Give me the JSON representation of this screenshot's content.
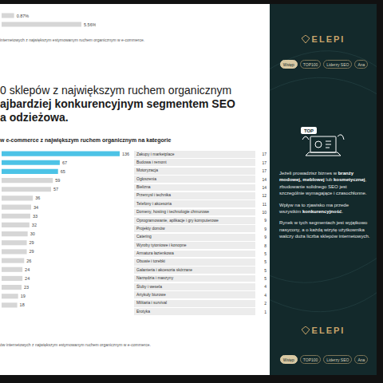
{
  "chart_data": [
    {
      "type": "bar",
      "orientation": "horizontal",
      "categories": [
        null,
        null
      ],
      "values": [
        0.87,
        5.56
      ],
      "value_labels": [
        "0.87%",
        "5.56%"
      ],
      "colors": [
        "#d6d6d6",
        "#d6d6d6"
      ],
      "xlim": [
        0,
        5.56
      ],
      "data_labels": true,
      "tick_labels": false,
      "grid": false
    },
    {
      "type": "bar",
      "orientation": "horizontal",
      "categories": [
        null,
        null,
        null,
        null,
        null,
        null,
        null,
        null,
        null,
        null,
        null,
        null,
        null,
        null,
        null,
        null,
        null,
        null
      ],
      "values": [
        136,
        67,
        65,
        59,
        57,
        36,
        34,
        33,
        32,
        30,
        29,
        29,
        26,
        24,
        24,
        23,
        19,
        18
      ],
      "colors": [
        "#4cc3e6",
        "#4cc3e6",
        "#4cc3e6",
        "#d6d6d6",
        "#d6d6d6",
        "#d6d6d6",
        "#d6d6d6",
        "#d6d6d6",
        "#d6d6d6",
        "#d6d6d6",
        "#d6d6d6",
        "#d6d6d6",
        "#d6d6d6",
        "#d6d6d6",
        "#d6d6d6",
        "#d6d6d6",
        "#d6d6d6",
        "#d6d6d6"
      ],
      "xlim": [
        0,
        136
      ],
      "data_labels": true,
      "tick_labels": false,
      "grid": false
    }
  ],
  "page": {
    "top_caption": "internetowych z największym estymowanym ruchem organicznym w e-commerce.",
    "heading": [
      [
        {
          "text": "0 sklepów z największym ruchem organicznym"
        }
      ],
      [
        {
          "text": "ajbardziej konkurencyjnym segmentem SEO",
          "strong": true
        }
      ],
      [
        {
          "text": "a odzieżowa.",
          "strong": true
        }
      ]
    ],
    "chart_title": "w e-commerce z największym ruchem organicznym na kategorie",
    "category_list": {
      "categories": [
        "Zakupy i marketplace",
        "Budowa i remont",
        "Motoryzacja",
        "Ogłoszenia",
        "Bielizna",
        "Przemysł i technika",
        "Telefony i akcesoria",
        "Domeny, hosting i technologie chmurowe",
        "Oprogramowanie, aplikacje i gry komputerowe",
        "Projekty domów",
        "Catering",
        "Wyroby tytoniowe i konopne",
        "Armatura łazienkowa",
        "Obuwie i torebki",
        "Galanteria i akcesoria skórzane",
        "Narzędzia i maszyny",
        "Śluby i wesela",
        "Artykuły biurowe",
        "Militaria i survival",
        "Erotyka"
      ],
      "values": [
        17,
        17,
        17,
        14,
        14,
        12,
        11,
        10,
        9,
        9,
        9,
        8,
        5,
        5,
        5,
        5,
        4,
        4,
        2,
        1
      ]
    },
    "bottom_caption": "ów internetowych z największym estymowanym ruchem organicznym w e-commerce.",
    "panel": {
      "logo": "ELEPI",
      "nav": [
        "Wstęp",
        "TOP100",
        "Liderzy SEO",
        "Ana"
      ],
      "active_nav": "Wstęp",
      "badge": "TOP",
      "paragraphs": [
        [
          {
            "text": "Jeżeli prowadzisz biznes w "
          },
          {
            "text": "branży modowej, meblowej",
            "strong": true
          },
          {
            "text": " lub "
          },
          {
            "text": "kosmetycznej",
            "strong": true
          },
          {
            "text": ", zbudowanie solidnego SEO jest szczególnie wymagające i czasochłonne."
          }
        ],
        [
          {
            "text": "Wpływ na to zjawisko ma przede wszystkim "
          },
          {
            "text": "konkurencyjność",
            "strong": true
          },
          {
            "text": "."
          }
        ],
        [
          {
            "text": "Rynek w tych segmentach jest wyjątkowo nasycony, a o każdą wizytę użytkownika walczy duża liczba sklepów internetowych."
          }
        ]
      ],
      "footer_logo": "ELEPI",
      "footer_nav": [
        "Wstęp",
        "TOP100",
        "Liderzy SEO",
        "Ana"
      ]
    }
  }
}
